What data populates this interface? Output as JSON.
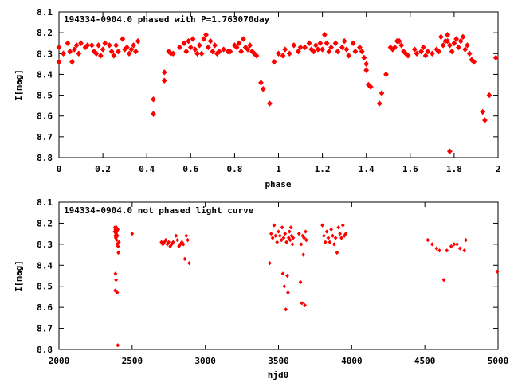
{
  "chart_data": [
    {
      "type": "scatter",
      "title": "194334-0904.0 phased with P=1.763070day",
      "xlabel": "phase",
      "ylabel": "I[mag]",
      "xlim": [
        0,
        2
      ],
      "ylim": [
        8.1,
        8.8
      ],
      "y_inverted": true,
      "grid": false,
      "legend": "none",
      "marker": "diamond",
      "color": "#ff0000",
      "xticks": [
        "0",
        "0.2",
        "0.4",
        "0.6",
        "0.8",
        "1",
        "1.2",
        "1.4",
        "1.6",
        "1.8",
        "2"
      ],
      "yticks": [
        "8.1",
        "8.2",
        "8.3",
        "8.4",
        "8.5",
        "8.6",
        "8.7",
        "8.8"
      ],
      "points": [
        [
          0.0,
          8.27
        ],
        [
          0.0,
          8.34
        ],
        [
          0.02,
          8.3
        ],
        [
          0.04,
          8.25
        ],
        [
          0.05,
          8.29
        ],
        [
          0.06,
          8.34
        ],
        [
          0.07,
          8.28
        ],
        [
          0.08,
          8.26
        ],
        [
          0.09,
          8.3
        ],
        [
          0.1,
          8.25
        ],
        [
          0.12,
          8.27
        ],
        [
          0.13,
          8.26
        ],
        [
          0.15,
          8.26
        ],
        [
          0.16,
          8.29
        ],
        [
          0.17,
          8.3
        ],
        [
          0.18,
          8.26
        ],
        [
          0.19,
          8.31
        ],
        [
          0.2,
          8.28
        ],
        [
          0.21,
          8.25
        ],
        [
          0.23,
          8.26
        ],
        [
          0.24,
          8.29
        ],
        [
          0.25,
          8.31
        ],
        [
          0.26,
          8.26
        ],
        [
          0.27,
          8.29
        ],
        [
          0.29,
          8.23
        ],
        [
          0.3,
          8.28
        ],
        [
          0.31,
          8.27
        ],
        [
          0.32,
          8.3
        ],
        [
          0.33,
          8.28
        ],
        [
          0.34,
          8.26
        ],
        [
          0.35,
          8.29
        ],
        [
          0.36,
          8.24
        ],
        [
          0.43,
          8.52
        ],
        [
          0.43,
          8.59
        ],
        [
          0.48,
          8.43
        ],
        [
          0.48,
          8.39
        ],
        [
          0.5,
          8.29
        ],
        [
          0.51,
          8.3
        ],
        [
          0.52,
          8.3
        ],
        [
          0.55,
          8.27
        ],
        [
          0.57,
          8.25
        ],
        [
          0.58,
          8.29
        ],
        [
          0.59,
          8.24
        ],
        [
          0.6,
          8.27
        ],
        [
          0.61,
          8.23
        ],
        [
          0.62,
          8.28
        ],
        [
          0.63,
          8.3
        ],
        [
          0.64,
          8.26
        ],
        [
          0.65,
          8.3
        ],
        [
          0.66,
          8.23
        ],
        [
          0.67,
          8.21
        ],
        [
          0.68,
          8.27
        ],
        [
          0.69,
          8.24
        ],
        [
          0.7,
          8.29
        ],
        [
          0.71,
          8.26
        ],
        [
          0.72,
          8.3
        ],
        [
          0.73,
          8.29
        ],
        [
          0.75,
          8.28
        ],
        [
          0.77,
          8.29
        ],
        [
          0.78,
          8.29
        ],
        [
          0.8,
          8.26
        ],
        [
          0.81,
          8.27
        ],
        [
          0.82,
          8.25
        ],
        [
          0.83,
          8.29
        ],
        [
          0.84,
          8.23
        ],
        [
          0.85,
          8.27
        ],
        [
          0.86,
          8.28
        ],
        [
          0.87,
          8.26
        ],
        [
          0.88,
          8.29
        ],
        [
          0.89,
          8.3
        ],
        [
          0.9,
          8.31
        ],
        [
          0.92,
          8.44
        ],
        [
          0.93,
          8.47
        ],
        [
          0.96,
          8.54
        ],
        [
          0.98,
          8.34
        ],
        [
          1.0,
          8.3
        ],
        [
          1.02,
          8.31
        ],
        [
          1.03,
          8.28
        ],
        [
          1.05,
          8.3
        ],
        [
          1.07,
          8.26
        ],
        [
          1.09,
          8.29
        ],
        [
          1.1,
          8.27
        ],
        [
          1.12,
          8.27
        ],
        [
          1.14,
          8.25
        ],
        [
          1.15,
          8.28
        ],
        [
          1.16,
          8.29
        ],
        [
          1.17,
          8.26
        ],
        [
          1.18,
          8.28
        ],
        [
          1.19,
          8.25
        ],
        [
          1.2,
          8.28
        ],
        [
          1.21,
          8.21
        ],
        [
          1.22,
          8.25
        ],
        [
          1.23,
          8.29
        ],
        [
          1.24,
          8.27
        ],
        [
          1.26,
          8.25
        ],
        [
          1.27,
          8.29
        ],
        [
          1.29,
          8.27
        ],
        [
          1.3,
          8.24
        ],
        [
          1.31,
          8.28
        ],
        [
          1.32,
          8.31
        ],
        [
          1.34,
          8.25
        ],
        [
          1.35,
          8.29
        ],
        [
          1.37,
          8.27
        ],
        [
          1.38,
          8.29
        ],
        [
          1.39,
          8.32
        ],
        [
          1.4,
          8.35
        ],
        [
          1.4,
          8.38
        ],
        [
          1.41,
          8.45
        ],
        [
          1.42,
          8.46
        ],
        [
          1.46,
          8.54
        ],
        [
          1.47,
          8.49
        ],
        [
          1.49,
          8.4
        ],
        [
          1.51,
          8.27
        ],
        [
          1.52,
          8.28
        ],
        [
          1.53,
          8.27
        ],
        [
          1.54,
          8.24
        ],
        [
          1.55,
          8.24
        ],
        [
          1.56,
          8.26
        ],
        [
          1.57,
          8.29
        ],
        [
          1.58,
          8.3
        ],
        [
          1.59,
          8.31
        ],
        [
          1.62,
          8.28
        ],
        [
          1.63,
          8.3
        ],
        [
          1.65,
          8.29
        ],
        [
          1.66,
          8.27
        ],
        [
          1.67,
          8.31
        ],
        [
          1.68,
          8.29
        ],
        [
          1.7,
          8.3
        ],
        [
          1.72,
          8.28
        ],
        [
          1.73,
          8.29
        ],
        [
          1.74,
          8.22
        ],
        [
          1.75,
          8.26
        ],
        [
          1.76,
          8.24
        ],
        [
          1.77,
          8.21
        ],
        [
          1.77,
          8.24
        ],
        [
          1.78,
          8.26
        ],
        [
          1.78,
          8.77
        ],
        [
          1.79,
          8.29
        ],
        [
          1.8,
          8.25
        ],
        [
          1.81,
          8.23
        ],
        [
          1.82,
          8.27
        ],
        [
          1.83,
          8.24
        ],
        [
          1.84,
          8.22
        ],
        [
          1.85,
          8.28
        ],
        [
          1.86,
          8.26
        ],
        [
          1.87,
          8.3
        ],
        [
          1.88,
          8.33
        ],
        [
          1.89,
          8.34
        ],
        [
          1.93,
          8.58
        ],
        [
          1.94,
          8.62
        ],
        [
          1.96,
          8.5
        ],
        [
          1.99,
          8.32
        ]
      ]
    },
    {
      "type": "scatter",
      "title": "194334-0904.0 not phased light curve",
      "xlabel": "hjd0",
      "ylabel": "I[mag]",
      "xlim": [
        2000,
        5000
      ],
      "ylim": [
        8.1,
        8.8
      ],
      "y_inverted": true,
      "grid": false,
      "legend": "none",
      "marker": "diamond",
      "color": "#ff0000",
      "xticks": [
        "2000",
        "2500",
        "3000",
        "3500",
        "4000",
        "4500",
        "5000"
      ],
      "yticks": [
        "8.1",
        "8.2",
        "8.3",
        "8.4",
        "8.5",
        "8.6",
        "8.7",
        "8.8"
      ],
      "points": [
        [
          2380,
          8.24
        ],
        [
          2382,
          8.22
        ],
        [
          2384,
          8.26
        ],
        [
          2386,
          8.23
        ],
        [
          2388,
          8.27
        ],
        [
          2390,
          8.25
        ],
        [
          2392,
          8.22
        ],
        [
          2394,
          8.28
        ],
        [
          2396,
          8.24
        ],
        [
          2398,
          8.3
        ],
        [
          2400,
          8.26
        ],
        [
          2402,
          8.23
        ],
        [
          2404,
          8.31
        ],
        [
          2406,
          8.34
        ],
        [
          2386,
          8.44
        ],
        [
          2390,
          8.47
        ],
        [
          2384,
          8.52
        ],
        [
          2398,
          8.53
        ],
        [
          2402,
          8.78
        ],
        [
          2410,
          8.29
        ],
        [
          2500,
          8.25
        ],
        [
          2700,
          8.29
        ],
        [
          2710,
          8.3
        ],
        [
          2720,
          8.29
        ],
        [
          2730,
          8.28
        ],
        [
          2740,
          8.3
        ],
        [
          2750,
          8.29
        ],
        [
          2760,
          8.31
        ],
        [
          2770,
          8.3
        ],
        [
          2780,
          8.29
        ],
        [
          2800,
          8.26
        ],
        [
          2810,
          8.28
        ],
        [
          2820,
          8.31
        ],
        [
          2830,
          8.3
        ],
        [
          2840,
          8.29
        ],
        [
          2850,
          8.3
        ],
        [
          2860,
          8.37
        ],
        [
          2870,
          8.26
        ],
        [
          2880,
          8.28
        ],
        [
          2890,
          8.39
        ],
        [
          3440,
          8.39
        ],
        [
          3450,
          8.25
        ],
        [
          3460,
          8.27
        ],
        [
          3470,
          8.21
        ],
        [
          3480,
          8.26
        ],
        [
          3490,
          8.29
        ],
        [
          3500,
          8.24
        ],
        [
          3510,
          8.26
        ],
        [
          3520,
          8.28
        ],
        [
          3525,
          8.22
        ],
        [
          3530,
          8.44
        ],
        [
          3535,
          8.27
        ],
        [
          3540,
          8.5
        ],
        [
          3545,
          8.25
        ],
        [
          3550,
          8.61
        ],
        [
          3555,
          8.29
        ],
        [
          3560,
          8.45
        ],
        [
          3565,
          8.53
        ],
        [
          3570,
          8.27
        ],
        [
          3575,
          8.24
        ],
        [
          3580,
          8.28
        ],
        [
          3585,
          8.22
        ],
        [
          3590,
          8.26
        ],
        [
          3595,
          8.3
        ],
        [
          3600,
          8.27
        ],
        [
          3640,
          8.25
        ],
        [
          3650,
          8.48
        ],
        [
          3655,
          8.3
        ],
        [
          3660,
          8.58
        ],
        [
          3665,
          8.26
        ],
        [
          3670,
          8.35
        ],
        [
          3675,
          8.27
        ],
        [
          3680,
          8.59
        ],
        [
          3685,
          8.24
        ],
        [
          3690,
          8.28
        ],
        [
          3800,
          8.21
        ],
        [
          3810,
          8.26
        ],
        [
          3820,
          8.29
        ],
        [
          3830,
          8.24
        ],
        [
          3840,
          8.27
        ],
        [
          3850,
          8.29
        ],
        [
          3860,
          8.23
        ],
        [
          3870,
          8.26
        ],
        [
          3880,
          8.3
        ],
        [
          3890,
          8.27
        ],
        [
          3900,
          8.34
        ],
        [
          3910,
          8.22
        ],
        [
          3920,
          8.25
        ],
        [
          3930,
          8.27
        ],
        [
          3940,
          8.21
        ],
        [
          3950,
          8.26
        ],
        [
          3960,
          8.25
        ],
        [
          4520,
          8.28
        ],
        [
          4550,
          8.3
        ],
        [
          4580,
          8.32
        ],
        [
          4600,
          8.33
        ],
        [
          4630,
          8.47
        ],
        [
          4650,
          8.33
        ],
        [
          4680,
          8.31
        ],
        [
          4700,
          8.3
        ],
        [
          4720,
          8.3
        ],
        [
          4740,
          8.32
        ],
        [
          4770,
          8.33
        ],
        [
          4780,
          8.28
        ],
        [
          4995,
          8.43
        ]
      ]
    }
  ]
}
